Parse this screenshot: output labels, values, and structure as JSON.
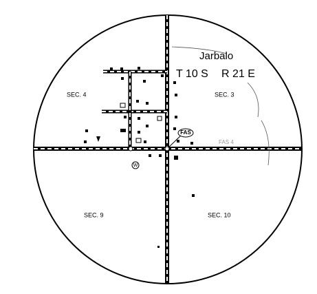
{
  "map": {
    "place": "Jarbalo",
    "township": "T 10 S",
    "range": "R 21 E",
    "sections": [
      "SEC. 4",
      "SEC. 3",
      "SEC. 9",
      "SEC. 10"
    ],
    "route_labels": [
      "FAS",
      "FAS 4"
    ],
    "symbol": "W"
  }
}
